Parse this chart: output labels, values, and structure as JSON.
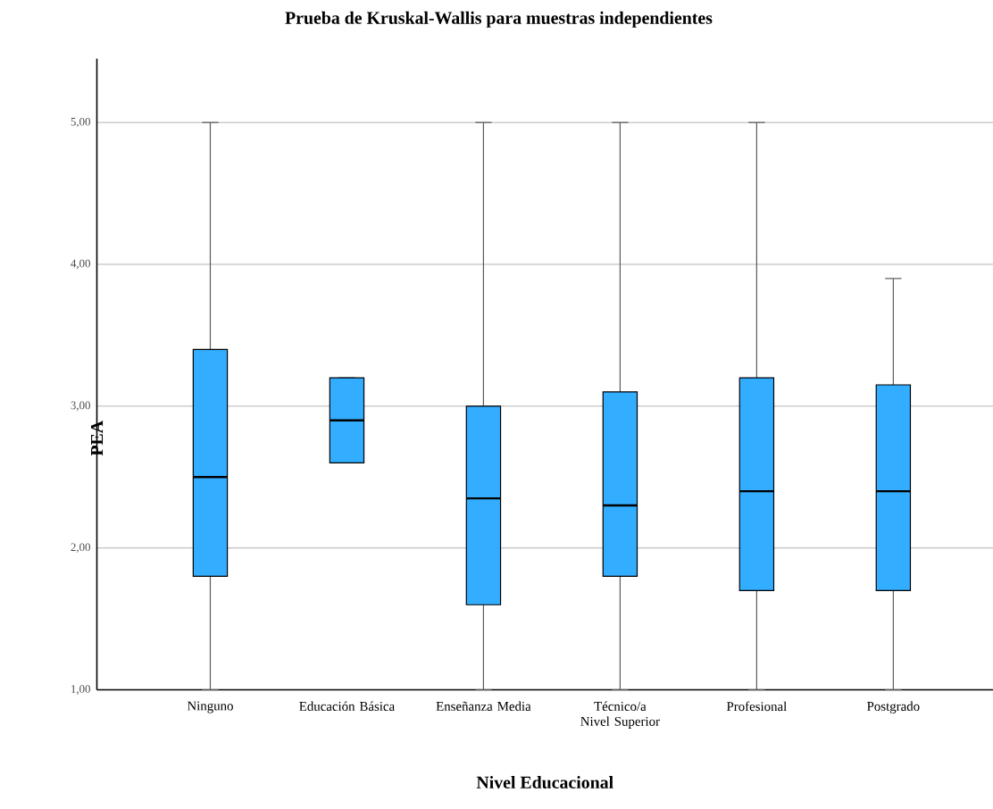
{
  "chart_data": {
    "type": "box",
    "title": "Prueba de Kruskal-Wallis para muestras independientes",
    "xlabel": "Nivel Educacional",
    "ylabel": "PEA",
    "categories": [
      "Ninguno",
      "Educación Básica",
      "Enseñanza Media",
      "Técnico/a Nivel Superior",
      "Profesional",
      "Postgrado"
    ],
    "color": "#33adff",
    "boxes": [
      {
        "low": 1.0,
        "q1": 1.8,
        "median": 2.5,
        "q3": 3.4,
        "high": 5.0
      },
      {
        "low": 2.6,
        "q1": 2.6,
        "median": 2.9,
        "q3": 3.2,
        "high": 3.2
      },
      {
        "low": 1.0,
        "q1": 1.6,
        "median": 2.35,
        "q3": 3.0,
        "high": 5.0
      },
      {
        "low": 1.0,
        "q1": 1.8,
        "median": 2.3,
        "q3": 3.1,
        "high": 5.0
      },
      {
        "low": 1.0,
        "q1": 1.7,
        "median": 2.4,
        "q3": 3.2,
        "high": 5.0
      },
      {
        "low": 1.0,
        "q1": 1.7,
        "median": 2.4,
        "q3": 3.15,
        "high": 3.9
      }
    ],
    "ylim": [
      1,
      5.45
    ],
    "yticks": [
      {
        "value": 1,
        "label": "1,00"
      },
      {
        "value": 2,
        "label": "2,00"
      },
      {
        "value": 3,
        "label": "3,00"
      },
      {
        "value": 4,
        "label": "4,00"
      },
      {
        "value": 5,
        "label": "5,00"
      }
    ],
    "grid": "y"
  }
}
